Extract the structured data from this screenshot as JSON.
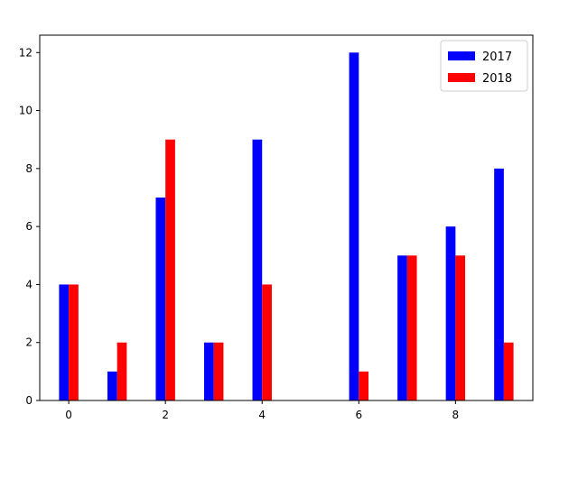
{
  "chart_data": {
    "type": "bar",
    "title": "",
    "xlabel": "",
    "ylabel": "",
    "x": [
      0,
      1,
      2,
      3,
      4,
      5,
      6,
      7,
      8,
      9
    ],
    "xlim": [
      -0.6,
      9.6
    ],
    "ylim": [
      0,
      12.6
    ],
    "xticks": [
      "0",
      "2",
      "4",
      "6",
      "8"
    ],
    "yticks": [
      "0",
      "2",
      "4",
      "6",
      "8",
      "10",
      "12"
    ],
    "grid": false,
    "legend_position": "upper right",
    "series": [
      {
        "name": "2017",
        "color": "#0000ff",
        "values": [
          4,
          1,
          7,
          2,
          9,
          0,
          12,
          5,
          6,
          8
        ]
      },
      {
        "name": "2018",
        "color": "#ff0000",
        "values": [
          4,
          2,
          9,
          2,
          4,
          0,
          1,
          5,
          5,
          2
        ]
      }
    ]
  }
}
